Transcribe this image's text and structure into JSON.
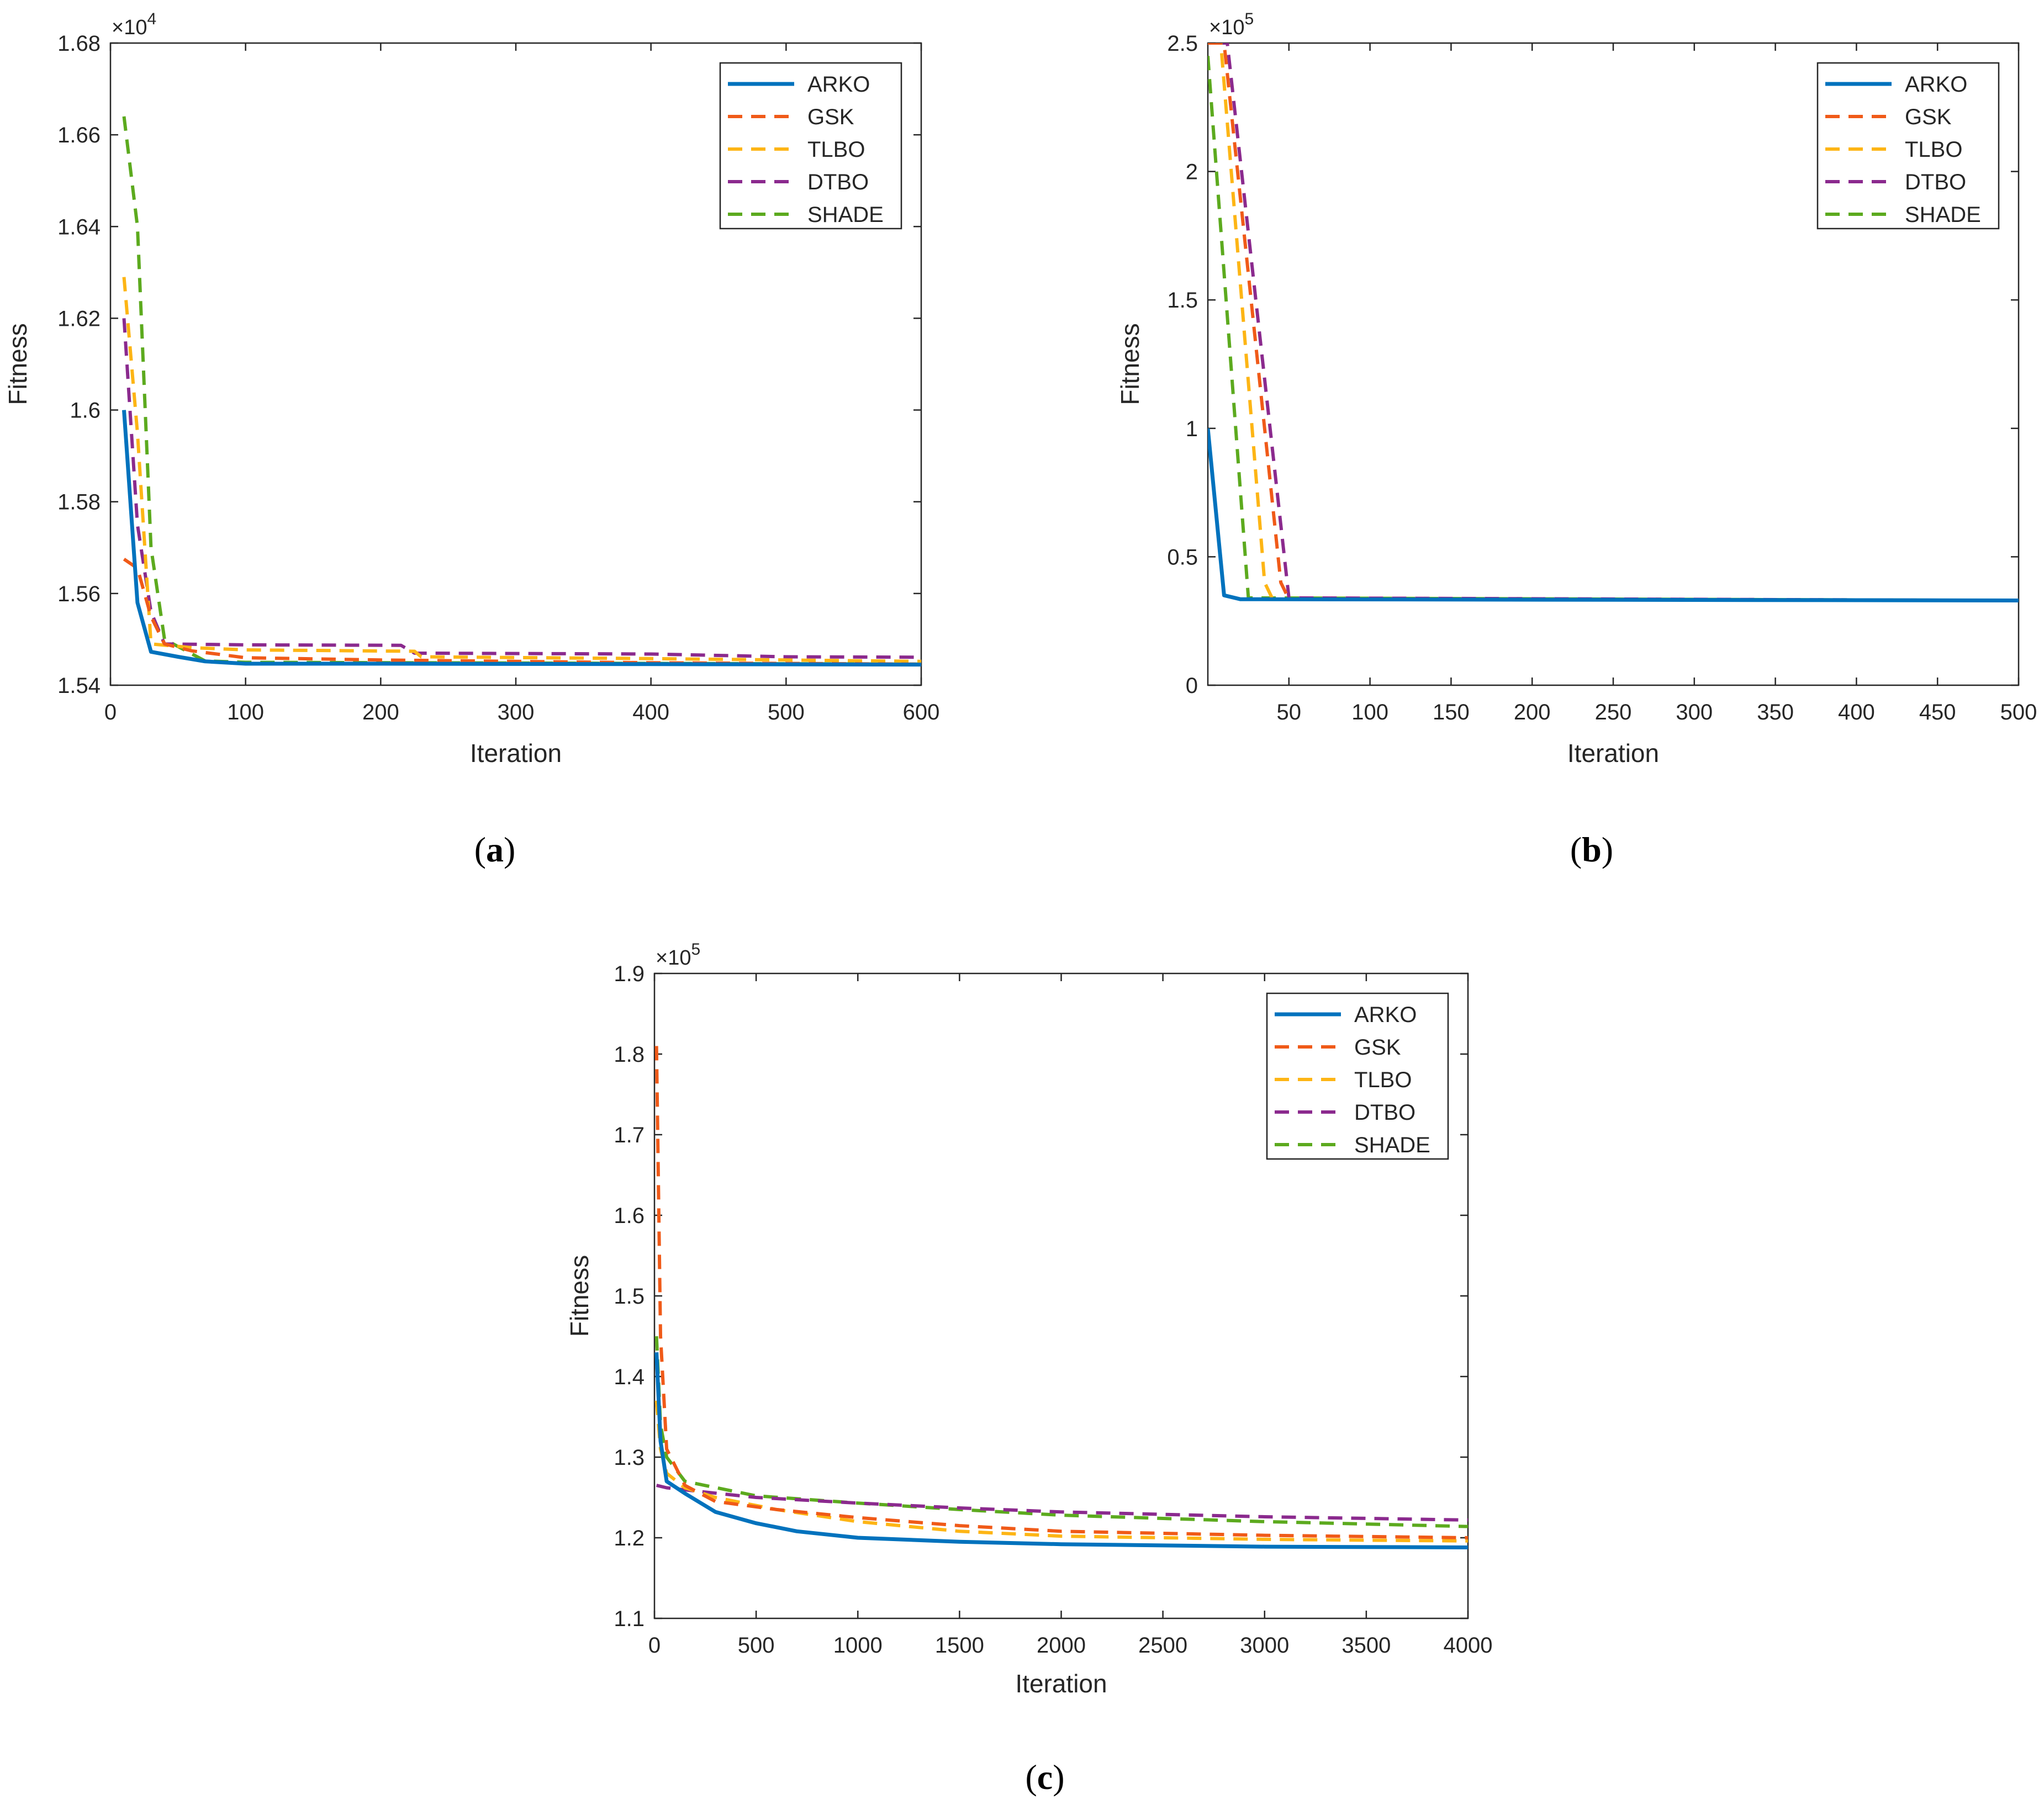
{
  "chart_data": [
    {
      "type": "line",
      "panel_label": "a",
      "xlabel": "Iteration",
      "ylabel": "Fitness",
      "exponent_label": "×10",
      "exponent_power": "4",
      "xlim": [
        0,
        600
      ],
      "ylim": [
        1.54,
        1.68
      ],
      "xticks": [
        0,
        100,
        200,
        300,
        400,
        500,
        600
      ],
      "yticks": [
        1.54,
        1.56,
        1.58,
        1.6,
        1.62,
        1.64,
        1.66,
        1.68
      ],
      "ytick_labels": [
        "1.54",
        "1.56",
        "1.58",
        "1.6",
        "1.62",
        "1.64",
        "1.66",
        "1.68"
      ],
      "legend_position": "top-right",
      "series": [
        {
          "name": "ARKO",
          "color": "#0072BD",
          "style": "solid",
          "points": [
            [
              10,
              1.6
            ],
            [
              20,
              1.558
            ],
            [
              30,
              1.5473
            ],
            [
              50,
              1.5462
            ],
            [
              70,
              1.5452
            ],
            [
              100,
              1.5447
            ],
            [
              200,
              1.5447
            ],
            [
              400,
              1.5446
            ],
            [
              600,
              1.5445
            ]
          ]
        },
        {
          "name": "GSK",
          "color": "#F05A18",
          "style": "dashed",
          "points": [
            [
              10,
              1.5675
            ],
            [
              20,
              1.5655
            ],
            [
              30,
              1.555
            ],
            [
              40,
              1.549
            ],
            [
              60,
              1.5475
            ],
            [
              100,
              1.546
            ],
            [
              200,
              1.5455
            ],
            [
              400,
              1.5449
            ],
            [
              600,
              1.5446
            ]
          ]
        },
        {
          "name": "TLBO",
          "color": "#FDB515",
          "style": "dashed",
          "points": [
            [
              10,
              1.629
            ],
            [
              20,
              1.595
            ],
            [
              30,
              1.549
            ],
            [
              60,
              1.5482
            ],
            [
              100,
              1.5477
            ],
            [
              225,
              1.5474
            ],
            [
              230,
              1.5462
            ],
            [
              400,
              1.5458
            ],
            [
              600,
              1.5452
            ]
          ]
        },
        {
          "name": "DTBO",
          "color": "#8B2A8E",
          "style": "dashed",
          "points": [
            [
              10,
              1.62
            ],
            [
              20,
              1.575
            ],
            [
              30,
              1.556
            ],
            [
              40,
              1.549
            ],
            [
              100,
              1.5488
            ],
            [
              215,
              1.5487
            ],
            [
              225,
              1.547
            ],
            [
              400,
              1.5468
            ],
            [
              500,
              1.5462
            ],
            [
              600,
              1.5461
            ]
          ]
        },
        {
          "name": "SHADE",
          "color": "#5CAA1E",
          "style": "dashed",
          "points": [
            [
              10,
              1.664
            ],
            [
              20,
              1.64
            ],
            [
              30,
              1.57
            ],
            [
              40,
              1.55
            ],
            [
              70,
              1.5453
            ],
            [
              100,
              1.545
            ],
            [
              600,
              1.5446
            ]
          ]
        }
      ]
    },
    {
      "type": "line",
      "panel_label": "b",
      "xlabel": "Iteration",
      "ylabel": "Fitness",
      "exponent_label": "×10",
      "exponent_power": "5",
      "xlim": [
        0,
        500
      ],
      "ylim": [
        0,
        2.5
      ],
      "xticks": [
        50,
        100,
        150,
        200,
        250,
        300,
        350,
        400,
        450,
        500
      ],
      "yticks": [
        0,
        0.5,
        1,
        1.5,
        2,
        2.5
      ],
      "ytick_labels": [
        "0",
        "0.5",
        "1",
        "1.5",
        "2",
        "2.5"
      ],
      "legend_position": "top-right",
      "series": [
        {
          "name": "ARKO",
          "color": "#0072BD",
          "style": "solid",
          "points": [
            [
              0,
              1.0
            ],
            [
              10,
              0.35
            ],
            [
              20,
              0.335
            ],
            [
              500,
              0.33
            ]
          ]
        },
        {
          "name": "GSK",
          "color": "#F05A18",
          "style": "dashed",
          "points": [
            [
              0,
              2.5
            ],
            [
              10,
              2.5
            ],
            [
              45,
              0.4
            ],
            [
              50,
              0.335
            ],
            [
              500,
              0.33
            ]
          ]
        },
        {
          "name": "TLBO",
          "color": "#FDB515",
          "style": "dashed",
          "points": [
            [
              0,
              2.5
            ],
            [
              8,
              2.5
            ],
            [
              35,
              0.4
            ],
            [
              40,
              0.335
            ],
            [
              500,
              0.33
            ]
          ]
        },
        {
          "name": "DTBO",
          "color": "#8B2A8E",
          "style": "dashed",
          "points": [
            [
              5,
              2.5
            ],
            [
              12,
              2.5
            ],
            [
              50,
              0.34
            ],
            [
              500,
              0.33
            ]
          ]
        },
        {
          "name": "SHADE",
          "color": "#5CAA1E",
          "style": "dashed",
          "points": [
            [
              0,
              2.45
            ],
            [
              25,
              0.34
            ],
            [
              500,
              0.33
            ]
          ]
        }
      ]
    },
    {
      "type": "line",
      "panel_label": "c",
      "xlabel": "Iteration",
      "ylabel": "Fitness",
      "exponent_label": "×10",
      "exponent_power": "5",
      "xlim": [
        0,
        4000
      ],
      "ylim": [
        1.1,
        1.9
      ],
      "xticks": [
        0,
        500,
        1000,
        1500,
        2000,
        2500,
        3000,
        3500,
        4000
      ],
      "yticks": [
        1.1,
        1.2,
        1.3,
        1.4,
        1.5,
        1.6,
        1.7,
        1.8,
        1.9
      ],
      "ytick_labels": [
        "1.1",
        "1.2",
        "1.3",
        "1.4",
        "1.5",
        "1.6",
        "1.7",
        "1.8",
        "1.9"
      ],
      "legend_position": "top-right",
      "series": [
        {
          "name": "ARKO",
          "color": "#0072BD",
          "style": "solid",
          "points": [
            [
              10,
              1.43
            ],
            [
              30,
              1.32
            ],
            [
              60,
              1.27
            ],
            [
              150,
              1.255
            ],
            [
              300,
              1.232
            ],
            [
              500,
              1.218
            ],
            [
              700,
              1.208
            ],
            [
              1000,
              1.2
            ],
            [
              1500,
              1.195
            ],
            [
              2000,
              1.192
            ],
            [
              3000,
              1.189
            ],
            [
              4000,
              1.188
            ]
          ]
        },
        {
          "name": "GSK",
          "color": "#F05A18",
          "style": "dashed",
          "points": [
            [
              10,
              1.81
            ],
            [
              30,
              1.45
            ],
            [
              60,
              1.31
            ],
            [
              150,
              1.265
            ],
            [
              300,
              1.245
            ],
            [
              600,
              1.235
            ],
            [
              1000,
              1.225
            ],
            [
              1500,
              1.215
            ],
            [
              2000,
              1.208
            ],
            [
              3000,
              1.203
            ],
            [
              4000,
              1.2
            ]
          ]
        },
        {
          "name": "TLBO",
          "color": "#FDB515",
          "style": "dashed",
          "points": [
            [
              10,
              1.37
            ],
            [
              30,
              1.31
            ],
            [
              60,
              1.28
            ],
            [
              150,
              1.262
            ],
            [
              300,
              1.25
            ],
            [
              600,
              1.235
            ],
            [
              1000,
              1.22
            ],
            [
              1500,
              1.208
            ],
            [
              2000,
              1.202
            ],
            [
              3000,
              1.198
            ],
            [
              4000,
              1.196
            ]
          ]
        },
        {
          "name": "DTBO",
          "color": "#8B2A8E",
          "style": "dashed",
          "points": [
            [
              10,
              1.265
            ],
            [
              60,
              1.262
            ],
            [
              200,
              1.258
            ],
            [
              500,
              1.25
            ],
            [
              1000,
              1.243
            ],
            [
              1500,
              1.237
            ],
            [
              2000,
              1.232
            ],
            [
              3000,
              1.226
            ],
            [
              4000,
              1.222
            ]
          ]
        },
        {
          "name": "SHADE",
          "color": "#5CAA1E",
          "style": "dashed",
          "points": [
            [
              10,
              1.45
            ],
            [
              30,
              1.34
            ],
            [
              60,
              1.3
            ],
            [
              150,
              1.27
            ],
            [
              500,
              1.252
            ],
            [
              1000,
              1.243
            ],
            [
              1500,
              1.235
            ],
            [
              2000,
              1.228
            ],
            [
              3000,
              1.22
            ],
            [
              4000,
              1.214
            ]
          ]
        }
      ]
    }
  ]
}
